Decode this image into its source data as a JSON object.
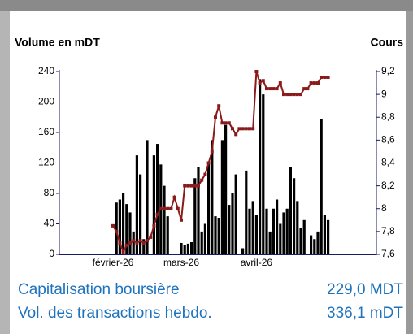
{
  "chart_data": {
    "type": "bar_line",
    "title_left": "Volume en mDT",
    "title_right": "Cours",
    "categories": [
      "février-26",
      null,
      null,
      null,
      null,
      null,
      null,
      null,
      null,
      null,
      null,
      null,
      null,
      null,
      null,
      null,
      null,
      null,
      null,
      null,
      "mars-26",
      null,
      null,
      null,
      null,
      null,
      null,
      null,
      null,
      null,
      null,
      null,
      null,
      null,
      null,
      null,
      null,
      null,
      null,
      null,
      null,
      null,
      "avril-26",
      null,
      null,
      null,
      null,
      null,
      null,
      null,
      null,
      null,
      null,
      null,
      null,
      null,
      null,
      null,
      null,
      null,
      null,
      null,
      null,
      null
    ],
    "series": [
      {
        "name": "Volume",
        "color": "#000000",
        "type": "bar",
        "values": [
          0,
          68,
          72,
          80,
          66,
          55,
          30,
          130,
          105,
          20,
          150,
          0,
          130,
          145,
          118,
          90,
          50,
          0,
          0,
          0,
          15,
          12,
          14,
          16,
          100,
          115,
          30,
          40,
          120,
          150,
          50,
          48,
          150,
          170,
          65,
          80,
          105,
          0,
          8,
          110,
          60,
          70,
          52,
          230,
          210,
          60,
          30,
          60,
          72,
          40,
          55,
          60,
          115,
          100,
          70,
          35,
          45,
          0,
          25,
          20,
          30,
          178,
          52,
          45
        ]
      },
      {
        "name": "Cours",
        "color": "#8b1a1a",
        "type": "line",
        "axis": "y2",
        "values": [
          7.85,
          7.8,
          7.7,
          7.62,
          7.68,
          7.7,
          7.72,
          7.7,
          7.72,
          7.7,
          7.72,
          7.75,
          7.85,
          7.95,
          8.0,
          8.0,
          8.0,
          8.0,
          8.1,
          8.0,
          7.9,
          8.2,
          8.2,
          8.2,
          8.2,
          8.2,
          8.25,
          8.3,
          8.4,
          8.5,
          8.8,
          8.9,
          8.75,
          8.75,
          8.75,
          8.7,
          8.65,
          8.7,
          8.7,
          8.7,
          8.7,
          8.7,
          9.2,
          9.1,
          9.12,
          9.05,
          9.05,
          9.05,
          9.05,
          9.1,
          9.0,
          9.0,
          9.0,
          9.0,
          9.0,
          9.0,
          9.05,
          9.05,
          9.1,
          9.1,
          9.1,
          9.15,
          9.15,
          9.15
        ]
      }
    ],
    "ylim": [
      0,
      240
    ],
    "yticks": [
      0,
      40,
      80,
      120,
      160,
      200,
      240
    ],
    "y2lim": [
      7.6,
      9.2
    ],
    "y2ticks": [
      {
        "value": 7.6,
        "label": "7,6"
      },
      {
        "value": 7.8,
        "label": "7,8"
      },
      8,
      {
        "value": 8.2,
        "label": "8,2"
      },
      {
        "value": 8.4,
        "label": "8,4"
      },
      {
        "value": 8.6,
        "label": "8,6"
      },
      {
        "value": 8.8,
        "label": "8,8"
      },
      9,
      {
        "value": 9.2,
        "label": "9,2"
      }
    ]
  },
  "info": [
    {
      "label": "Capitalisation boursière",
      "value": "229,0 MDT"
    },
    {
      "label": "Vol. des transactions hebdo.",
      "value": "336,1 mDT"
    }
  ]
}
